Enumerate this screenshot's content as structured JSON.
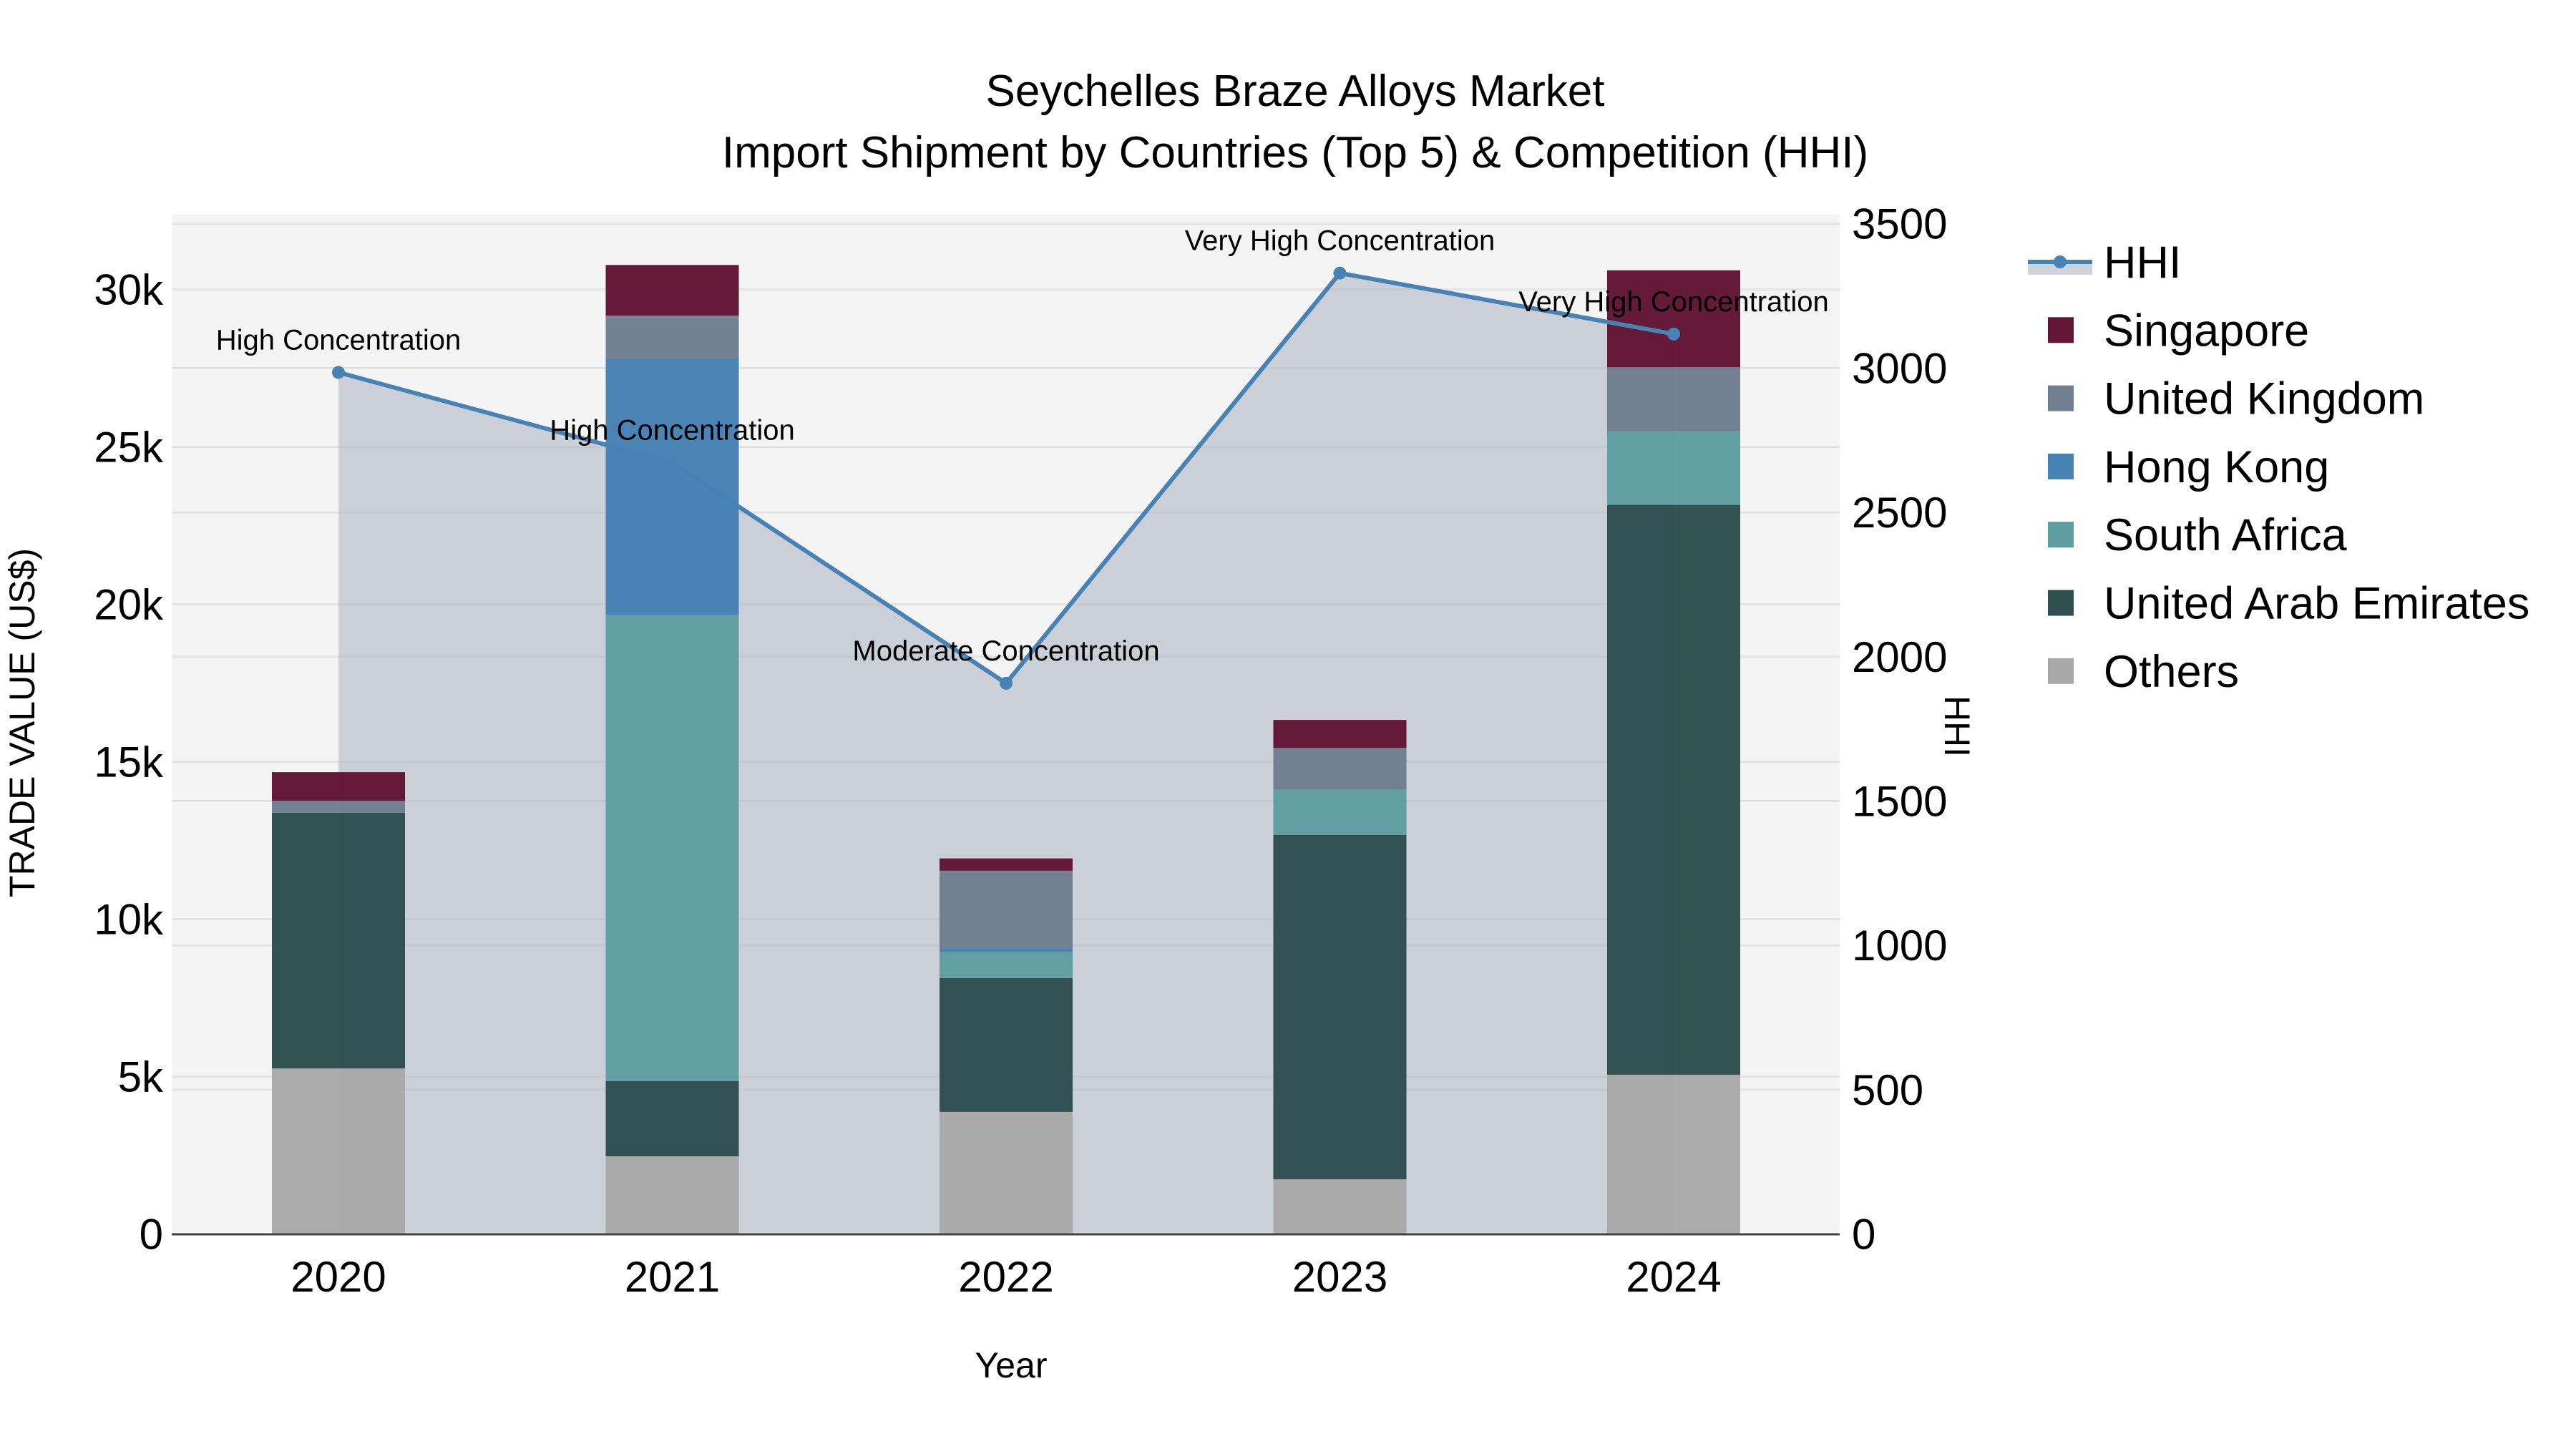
{
  "title": {
    "line1": "Seychelles Braze Alloys Market",
    "line2": "Import Shipment by Countries (Top 5) & Competition (HHI)"
  },
  "axes": {
    "x_title": "Year",
    "y_left_title": "TRADE VALUE (US$)",
    "y_right_title": "HHI",
    "y_left_ticks": [
      "0",
      "5k",
      "10k",
      "15k",
      "20k",
      "25k",
      "30k"
    ],
    "y_right_ticks": [
      "0",
      "500",
      "1000",
      "1500",
      "2000",
      "2500",
      "3000",
      "3500"
    ]
  },
  "legend": [
    {
      "name": "HHI",
      "type": "line",
      "color": "#4682B4"
    },
    {
      "name": "Singapore",
      "type": "bar",
      "color": "#631535"
    },
    {
      "name": "United Kingdom",
      "type": "bar",
      "color": "#708090"
    },
    {
      "name": "Hong Kong",
      "type": "bar",
      "color": "#4682B4"
    },
    {
      "name": "South Africa",
      "type": "bar",
      "color": "#5F9EA0"
    },
    {
      "name": "United Arab Emirates",
      "type": "bar",
      "color": "#2F4F4F"
    },
    {
      "name": "Others",
      "type": "bar",
      "color": "#A9A9A9"
    }
  ],
  "chart_data": {
    "type": "bar",
    "subtype": "stacked bar + line (dual axis)",
    "title": "Seychelles Braze Alloys Market — Import Shipment by Countries (Top 5) & Competition (HHI)",
    "xlabel": "Year",
    "ylabel": "TRADE VALUE (US$)",
    "y2label": "HHI",
    "categories": [
      "2020",
      "2021",
      "2022",
      "2023",
      "2024"
    ],
    "ylim": [
      0,
      32300
    ],
    "y2lim": [
      0,
      3530
    ],
    "grid": true,
    "legend_position": "right",
    "series": [
      {
        "name": "Others",
        "type": "bar",
        "axis": "left",
        "color": "#A9A9A9",
        "values": [
          5260,
          2470,
          3880,
          1740,
          5060
        ]
      },
      {
        "name": "United Arab Emirates",
        "type": "bar",
        "axis": "left",
        "color": "#2F4F4F",
        "values": [
          8120,
          2390,
          4250,
          10940,
          18100
        ]
      },
      {
        "name": "South Africa",
        "type": "bar",
        "axis": "left",
        "color": "#5F9EA0",
        "values": [
          0,
          14810,
          840,
          1430,
          2340
        ]
      },
      {
        "name": "Hong Kong",
        "type": "bar",
        "axis": "left",
        "color": "#4682B4",
        "values": [
          0,
          8140,
          110,
          0,
          0
        ]
      },
      {
        "name": "United Kingdom",
        "type": "bar",
        "axis": "left",
        "color": "#708090",
        "values": [
          380,
          1360,
          2460,
          1330,
          2030
        ]
      },
      {
        "name": "Singapore",
        "type": "bar",
        "axis": "left",
        "color": "#631535",
        "values": [
          910,
          1610,
          390,
          890,
          3080
        ]
      },
      {
        "name": "HHI",
        "type": "line",
        "axis": "right",
        "color": "#4682B4",
        "fill": "tozeroy",
        "values": [
          2985,
          2672,
          1908,
          3329,
          3118
        ]
      }
    ],
    "annotations": [
      {
        "x": "2020",
        "text": "High Concentration"
      },
      {
        "x": "2021",
        "text": "High Concentration"
      },
      {
        "x": "2022",
        "text": "Moderate Concentration"
      },
      {
        "x": "2023",
        "text": "Very High Concentration"
      },
      {
        "x": "2024",
        "text": "Very High Concentration"
      }
    ]
  }
}
